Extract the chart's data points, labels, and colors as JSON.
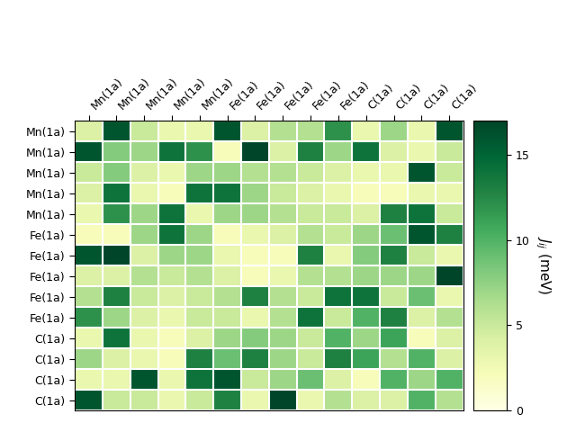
{
  "labels": [
    "Mn(1a)",
    "Mn(1a)",
    "Mn(1a)",
    "Mn(1a)",
    "Mn(1a)",
    "Fe(1a)",
    "Fe(1a)",
    "Fe(1a)",
    "Fe(1a)",
    "Fe(1a)",
    "C(1a)",
    "C(1a)",
    "C(1a)",
    "C(1a)"
  ],
  "matrix": [
    [
      4,
      16,
      5,
      3,
      3,
      16,
      4,
      6,
      6,
      12,
      3,
      7,
      3,
      16
    ],
    [
      16,
      8,
      7,
      14,
      12,
      2,
      17,
      4,
      13,
      7,
      14,
      4,
      3,
      5
    ],
    [
      5,
      8,
      4,
      3,
      7,
      7,
      6,
      6,
      5,
      4,
      3,
      3,
      16,
      5
    ],
    [
      4,
      14,
      3,
      2,
      14,
      14,
      7,
      5,
      4,
      3,
      2,
      2,
      3,
      3
    ],
    [
      3,
      12,
      7,
      14,
      3,
      7,
      7,
      6,
      5,
      5,
      4,
      13,
      14,
      5
    ],
    [
      2,
      2,
      7,
      14,
      7,
      2,
      3,
      4,
      6,
      5,
      7,
      9,
      16,
      13
    ],
    [
      16,
      17,
      4,
      7,
      7,
      3,
      2,
      2,
      13,
      3,
      8,
      13,
      5,
      3
    ],
    [
      4,
      4,
      6,
      5,
      6,
      4,
      2,
      3,
      6,
      6,
      7,
      7,
      7,
      17
    ],
    [
      6,
      13,
      5,
      4,
      5,
      6,
      13,
      6,
      5,
      14,
      14,
      5,
      9,
      3
    ],
    [
      12,
      7,
      4,
      3,
      5,
      5,
      3,
      6,
      14,
      5,
      10,
      13,
      4,
      6
    ],
    [
      3,
      14,
      3,
      2,
      4,
      7,
      8,
      7,
      5,
      10,
      7,
      11,
      2,
      4
    ],
    [
      7,
      4,
      3,
      2,
      13,
      9,
      13,
      7,
      5,
      13,
      11,
      6,
      10,
      4
    ],
    [
      3,
      3,
      16,
      3,
      14,
      16,
      5,
      7,
      9,
      4,
      2,
      10,
      7,
      10
    ],
    [
      16,
      5,
      5,
      3,
      5,
      13,
      3,
      17,
      3,
      6,
      4,
      4,
      10,
      6
    ]
  ],
  "vmin": 0,
  "vmax": 17,
  "cmap": "YlGn",
  "colorbar_label": "$J_{ij}$ (meV)",
  "colorbar_ticks": [
    0,
    5,
    10,
    15
  ],
  "title": "",
  "figsize": [
    6.4,
    4.8
  ],
  "dpi": 100,
  "tick_fontsize": 9,
  "cbar_fontsize": 11,
  "rotation": 45,
  "grid_color": "white",
  "grid_linewidth": 1.5
}
